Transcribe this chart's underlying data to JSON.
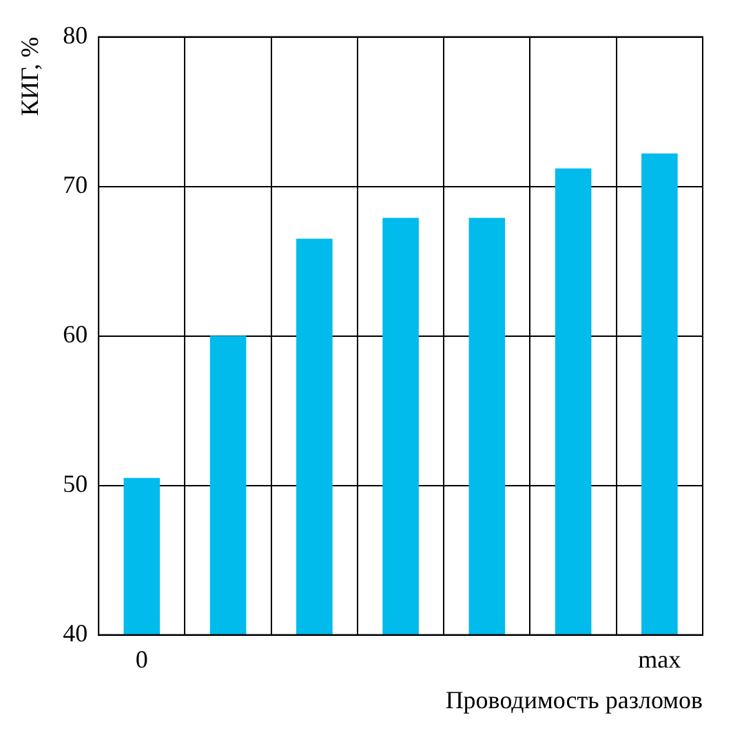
{
  "chart_data": {
    "type": "bar",
    "categories": [
      "0",
      null,
      null,
      null,
      null,
      null,
      "max"
    ],
    "values": [
      50.5,
      60,
      66.5,
      67.9,
      67.9,
      71.2,
      72.2
    ],
    "color": "#00bbec",
    "ylim": [
      40,
      80
    ],
    "yticks": [
      40,
      50,
      60,
      70,
      80
    ],
    "grid": true,
    "legend": false,
    "ylabel": "КИГ, %",
    "xlabel": "Проводимость разломов"
  }
}
